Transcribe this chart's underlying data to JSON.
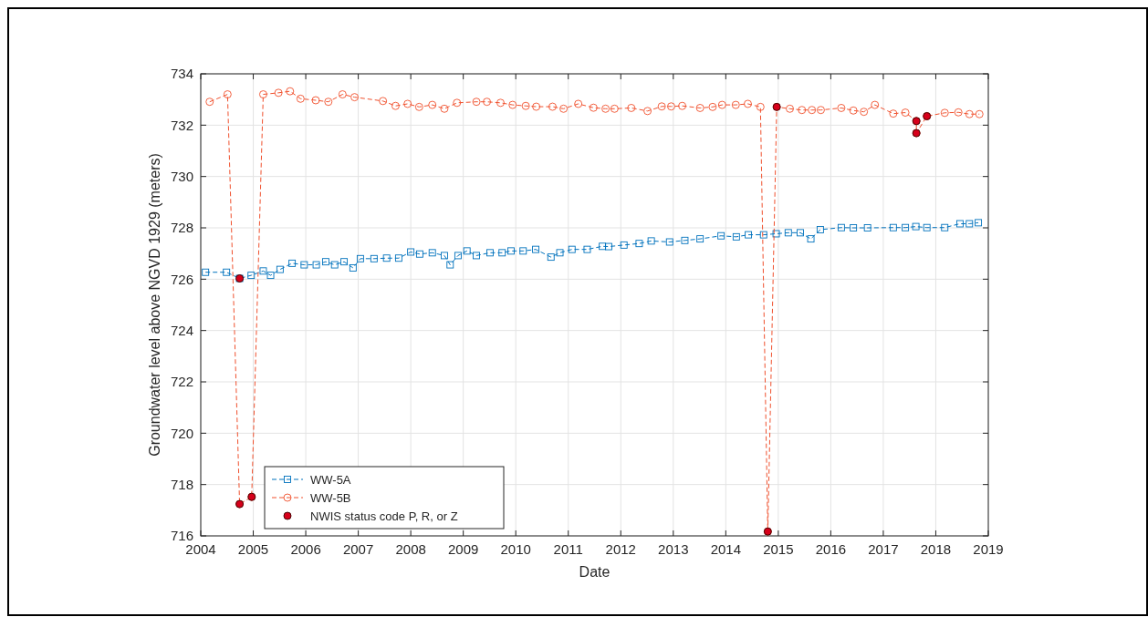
{
  "chart_data": {
    "type": "line",
    "xlabel": "Date",
    "ylabel": "Groundwater level above NGVD 1929 (meters)",
    "xlim": [
      2004,
      2019
    ],
    "xticks": [
      2004,
      2005,
      2006,
      2007,
      2008,
      2009,
      2010,
      2011,
      2012,
      2013,
      2014,
      2015,
      2016,
      2017,
      2018,
      2019
    ],
    "ylim": [
      716,
      734
    ],
    "yticks": [
      716,
      718,
      720,
      722,
      724,
      726,
      728,
      730,
      732,
      734
    ],
    "grid": true,
    "legend": "bottom left",
    "line_style": "dashed",
    "series": [
      {
        "name": "WW-5A",
        "color": "#0072bd",
        "marker": "square",
        "x": [
          2004.09,
          2004.49,
          2004.74,
          2004.96,
          2005.19,
          2005.33,
          2005.51,
          2005.74,
          2005.97,
          2006.2,
          2006.38,
          2006.55,
          2006.73,
          2006.9,
          2007.04,
          2007.3,
          2007.54,
          2007.77,
          2008.0,
          2008.17,
          2008.41,
          2008.64,
          2008.75,
          2008.9,
          2009.07,
          2009.25,
          2009.51,
          2009.74,
          2009.91,
          2010.14,
          2010.38,
          2010.67,
          2010.84,
          2011.07,
          2011.36,
          2011.65,
          2011.77,
          2012.06,
          2012.35,
          2012.58,
          2012.93,
          2013.22,
          2013.51,
          2013.91,
          2014.2,
          2014.43,
          2014.72,
          2014.96,
          2015.19,
          2015.42,
          2015.62,
          2015.8,
          2016.2,
          2016.43,
          2016.7,
          2017.19,
          2017.42,
          2017.62,
          2017.83,
          2018.17,
          2018.46,
          2018.64,
          2018.81
        ],
        "values": [
          726.27,
          726.27,
          726.03,
          726.15,
          726.32,
          726.15,
          726.38,
          726.62,
          726.56,
          726.56,
          726.68,
          726.56,
          726.68,
          726.44,
          726.8,
          726.8,
          726.82,
          726.82,
          727.06,
          726.98,
          727.03,
          726.92,
          726.56,
          726.92,
          727.1,
          726.92,
          727.03,
          727.03,
          727.1,
          727.1,
          727.16,
          726.86,
          727.03,
          727.16,
          727.16,
          727.28,
          727.27,
          727.33,
          727.39,
          727.49,
          727.45,
          727.51,
          727.57,
          727.69,
          727.65,
          727.73,
          727.73,
          727.77,
          727.81,
          727.81,
          727.57,
          727.93,
          728.01,
          728.0,
          728.0,
          728.01,
          728.01,
          728.05,
          728.01,
          728.01,
          728.16,
          728.16,
          728.2
        ]
      },
      {
        "name": "WW-5B",
        "color": "#f0502d",
        "marker": "circle",
        "x": [
          2004.17,
          2004.51,
          2004.74,
          2004.97,
          2005.19,
          2005.48,
          2005.7,
          2005.9,
          2006.19,
          2006.43,
          2006.7,
          2006.93,
          2007.47,
          2007.71,
          2007.94,
          2008.16,
          2008.41,
          2008.64,
          2008.88,
          2009.25,
          2009.45,
          2009.71,
          2009.94,
          2010.19,
          2010.39,
          2010.7,
          2010.91,
          2011.19,
          2011.48,
          2011.71,
          2011.88,
          2012.2,
          2012.51,
          2012.78,
          2012.96,
          2013.17,
          2013.51,
          2013.75,
          2013.93,
          2014.19,
          2014.42,
          2014.66,
          2014.8,
          2014.97,
          2015.22,
          2015.45,
          2015.64,
          2015.81,
          2016.2,
          2016.43,
          2016.63,
          2016.84,
          2017.19,
          2017.42,
          2017.63,
          2017.63,
          2017.83,
          2018.17,
          2018.43,
          2018.64,
          2018.83
        ],
        "values": [
          732.91,
          733.2,
          717.24,
          717.52,
          733.2,
          733.26,
          733.32,
          733.03,
          732.97,
          732.91,
          733.2,
          733.09,
          732.94,
          732.75,
          732.83,
          732.71,
          732.79,
          732.64,
          732.87,
          732.91,
          732.91,
          732.87,
          732.79,
          732.75,
          732.72,
          732.72,
          732.64,
          732.83,
          732.68,
          732.64,
          732.64,
          732.67,
          732.55,
          732.73,
          732.73,
          732.75,
          732.67,
          732.71,
          732.79,
          732.79,
          732.83,
          732.71,
          716.17,
          732.71,
          732.64,
          732.59,
          732.59,
          732.59,
          732.67,
          732.57,
          732.52,
          732.79,
          732.45,
          732.49,
          732.16,
          731.69,
          732.35,
          732.48,
          732.5,
          732.43,
          732.43
        ]
      },
      {
        "name": "NWIS status code P, R, or Z",
        "type": "scatter",
        "color": "#d7001a",
        "marker": "circle",
        "x": [
          2004.74,
          2004.74,
          2004.97,
          2014.8,
          2014.97,
          2017.63,
          2017.63,
          2017.83
        ],
        "values": [
          726.03,
          717.24,
          717.52,
          716.17,
          732.71,
          732.16,
          731.69,
          732.35
        ]
      }
    ]
  }
}
